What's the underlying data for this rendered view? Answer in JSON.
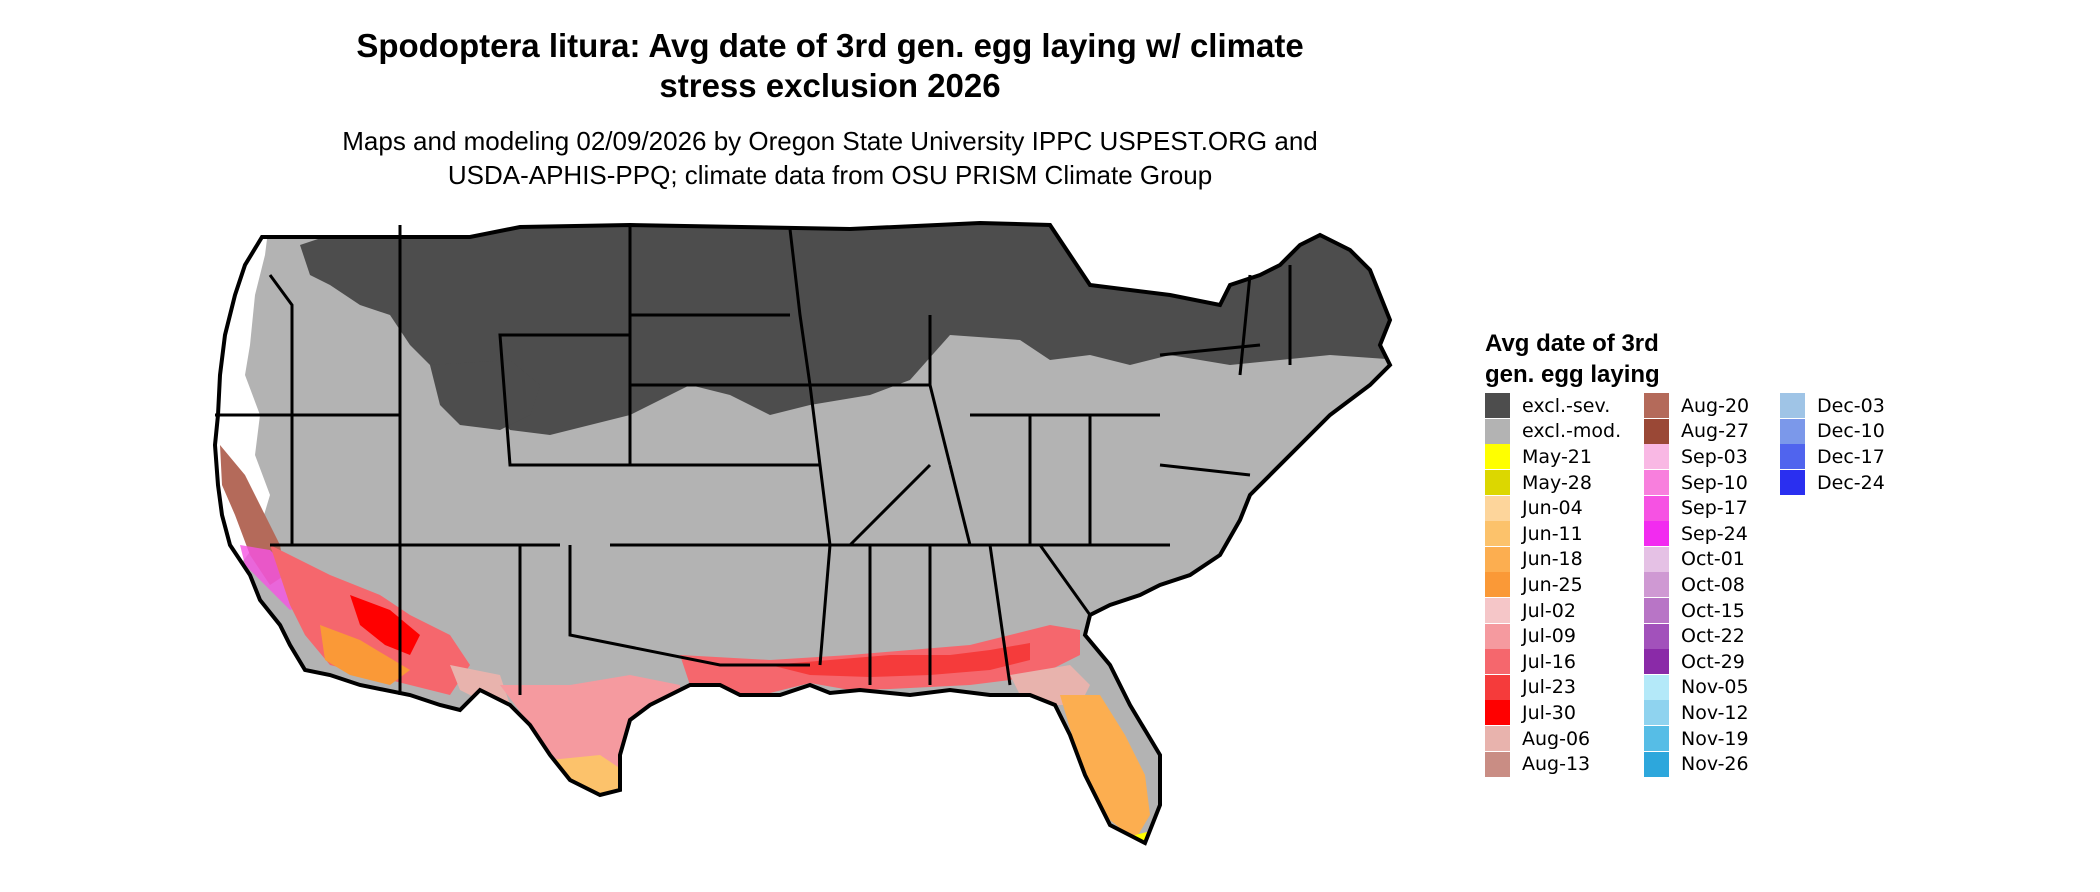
{
  "title": {
    "line1": "Spodoptera litura: Avg date of 3rd gen. egg laying w/ climate",
    "line2": "stress exclusion 2026"
  },
  "subtitle": {
    "line1": "Maps and modeling 02/09/2026 by Oregon State University IPPC USPEST.ORG and",
    "line2": "USDA-APHIS-PPQ; climate data from OSU PRISM Climate Group"
  },
  "legend": {
    "title_line1": "Avg date of 3rd",
    "title_line2": "gen. egg laying",
    "columns": [
      [
        {
          "label": "excl.-sev.",
          "color": "#4d4d4d"
        },
        {
          "label": "excl.-mod.",
          "color": "#b3b3b3"
        },
        {
          "label": "May-21",
          "color": "#ffff00"
        },
        {
          "label": "May-28",
          "color": "#dcd700"
        },
        {
          "label": "Jun-04",
          "color": "#fdd59b"
        },
        {
          "label": "Jun-11",
          "color": "#fcc26b"
        },
        {
          "label": "Jun-18",
          "color": "#fcae50"
        },
        {
          "label": "Jun-25",
          "color": "#fa9937"
        },
        {
          "label": "Jul-02",
          "color": "#f5c6c8"
        },
        {
          "label": "Jul-09",
          "color": "#f59a9f"
        },
        {
          "label": "Jul-16",
          "color": "#f5676d"
        },
        {
          "label": "Jul-23",
          "color": "#f53b3b"
        },
        {
          "label": "Jul-30",
          "color": "#ff0000"
        },
        {
          "label": "Aug-06",
          "color": "#e8b3ad"
        },
        {
          "label": "Aug-13",
          "color": "#c98d84"
        }
      ],
      [
        {
          "label": "Aug-20",
          "color": "#b46a5a"
        },
        {
          "label": "Aug-27",
          "color": "#9a4836"
        },
        {
          "label": "Sep-03",
          "color": "#f9b8e4"
        },
        {
          "label": "Sep-10",
          "color": "#f87fdd"
        },
        {
          "label": "Sep-17",
          "color": "#f652e3"
        },
        {
          "label": "Sep-24",
          "color": "#f22bf0"
        },
        {
          "label": "Oct-01",
          "color": "#e5c1e5"
        },
        {
          "label": "Oct-08",
          "color": "#cf99d3"
        },
        {
          "label": "Oct-15",
          "color": "#b875c6"
        },
        {
          "label": "Oct-22",
          "color": "#a251bb"
        },
        {
          "label": "Oct-29",
          "color": "#8a2aa8"
        },
        {
          "label": "Nov-05",
          "color": "#b4e9f9"
        },
        {
          "label": "Nov-12",
          "color": "#8fd3ef"
        },
        {
          "label": "Nov-19",
          "color": "#56bde6"
        },
        {
          "label": "Nov-26",
          "color": "#2da7dc"
        }
      ],
      [
        {
          "label": "Dec-03",
          "color": "#9fc4e6"
        },
        {
          "label": "Dec-10",
          "color": "#7b98ea"
        },
        {
          "label": "Dec-17",
          "color": "#5064ee"
        },
        {
          "label": "Dec-24",
          "color": "#2a2ff0"
        }
      ]
    ]
  },
  "map": {
    "region": "Contiguous United States",
    "state_boundary_color": "#000000"
  }
}
